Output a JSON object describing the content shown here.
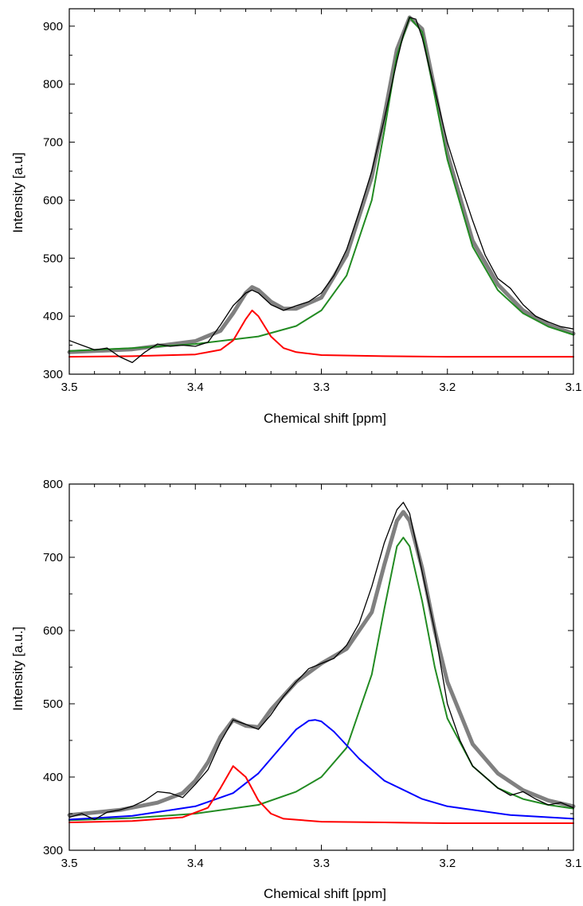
{
  "chart_data": [
    {
      "type": "line",
      "title": "",
      "xlabel": "Chemical shift [ppm]",
      "ylabel": "Intensity [a.u]",
      "xlim": [
        3.5,
        3.1
      ],
      "ylim": [
        300,
        930
      ],
      "x_reversed": true,
      "grid": false,
      "x_ticks": [
        "3.5",
        "3.4",
        "3.3",
        "3.2",
        "3.1"
      ],
      "y_ticks": [
        "300",
        "400",
        "500",
        "600",
        "700",
        "800",
        "900"
      ],
      "series": [
        {
          "color": "#000000",
          "style": "thin measured spectrum",
          "x": [
            3.5,
            3.49,
            3.48,
            3.47,
            3.46,
            3.45,
            3.44,
            3.43,
            3.42,
            3.41,
            3.4,
            3.39,
            3.38,
            3.37,
            3.36,
            3.355,
            3.35,
            3.34,
            3.33,
            3.32,
            3.31,
            3.3,
            3.29,
            3.28,
            3.27,
            3.26,
            3.25,
            3.24,
            3.235,
            3.23,
            3.225,
            3.22,
            3.21,
            3.2,
            3.19,
            3.18,
            3.17,
            3.16,
            3.15,
            3.14,
            3.13,
            3.12,
            3.11,
            3.1
          ],
          "y": [
            358,
            350,
            342,
            345,
            330,
            320,
            338,
            352,
            348,
            350,
            348,
            355,
            385,
            418,
            440,
            445,
            440,
            420,
            410,
            418,
            425,
            440,
            470,
            515,
            580,
            650,
            740,
            840,
            885,
            915,
            912,
            880,
            790,
            700,
            630,
            565,
            505,
            465,
            448,
            420,
            400,
            390,
            382,
            378
          ]
        },
        {
          "color": "#808080",
          "style": "thick total fit",
          "x": [
            3.5,
            3.45,
            3.4,
            3.38,
            3.37,
            3.36,
            3.355,
            3.35,
            3.34,
            3.33,
            3.32,
            3.3,
            3.28,
            3.26,
            3.25,
            3.24,
            3.23,
            3.22,
            3.21,
            3.2,
            3.18,
            3.16,
            3.14,
            3.12,
            3.1
          ],
          "y": [
            338,
            343,
            357,
            375,
            405,
            440,
            450,
            445,
            425,
            413,
            413,
            432,
            505,
            640,
            745,
            860,
            915,
            895,
            790,
            680,
            530,
            455,
            410,
            385,
            370
          ]
        },
        {
          "color": "#228B22",
          "style": "fit component",
          "x": [
            3.5,
            3.45,
            3.4,
            3.35,
            3.32,
            3.3,
            3.28,
            3.26,
            3.25,
            3.24,
            3.23,
            3.22,
            3.21,
            3.2,
            3.18,
            3.16,
            3.14,
            3.12,
            3.1
          ],
          "y": [
            340,
            345,
            352,
            365,
            383,
            410,
            470,
            600,
            720,
            850,
            915,
            890,
            780,
            670,
            520,
            445,
            405,
            382,
            368
          ]
        },
        {
          "color": "#FF0000",
          "style": "fit component",
          "x": [
            3.5,
            3.45,
            3.4,
            3.38,
            3.37,
            3.36,
            3.355,
            3.35,
            3.34,
            3.33,
            3.32,
            3.3,
            3.25,
            3.2,
            3.1
          ],
          "y": [
            330,
            331,
            334,
            342,
            358,
            395,
            410,
            400,
            365,
            345,
            338,
            333,
            331,
            330,
            330
          ]
        }
      ]
    },
    {
      "type": "line",
      "title": "",
      "xlabel": "Chemical shift [ppm]",
      "ylabel": "Intensity [a.u.]",
      "xlim": [
        3.5,
        3.1
      ],
      "ylim": [
        300,
        800
      ],
      "x_reversed": true,
      "grid": false,
      "x_ticks": [
        "3.5",
        "3.4",
        "3.3",
        "3.2",
        "3.1"
      ],
      "y_ticks": [
        "300",
        "400",
        "500",
        "600",
        "700",
        "800"
      ],
      "series": [
        {
          "color": "#000000",
          "style": "thin measured spectrum",
          "x": [
            3.5,
            3.49,
            3.48,
            3.47,
            3.46,
            3.45,
            3.44,
            3.43,
            3.42,
            3.41,
            3.4,
            3.39,
            3.38,
            3.37,
            3.36,
            3.35,
            3.34,
            3.33,
            3.32,
            3.31,
            3.3,
            3.29,
            3.28,
            3.27,
            3.26,
            3.25,
            3.24,
            3.235,
            3.23,
            3.22,
            3.21,
            3.2,
            3.19,
            3.18,
            3.17,
            3.16,
            3.15,
            3.14,
            3.13,
            3.12,
            3.11,
            3.1
          ],
          "y": [
            345,
            350,
            342,
            352,
            355,
            360,
            368,
            380,
            378,
            372,
            390,
            410,
            448,
            478,
            472,
            465,
            485,
            510,
            530,
            548,
            555,
            562,
            580,
            610,
            660,
            720,
            765,
            775,
            760,
            680,
            600,
            500,
            450,
            415,
            400,
            385,
            375,
            380,
            370,
            362,
            365,
            358
          ]
        },
        {
          "color": "#808080",
          "style": "thick total fit",
          "x": [
            3.5,
            3.46,
            3.43,
            3.41,
            3.4,
            3.39,
            3.38,
            3.37,
            3.36,
            3.35,
            3.34,
            3.32,
            3.3,
            3.28,
            3.26,
            3.25,
            3.24,
            3.235,
            3.23,
            3.22,
            3.21,
            3.2,
            3.18,
            3.16,
            3.14,
            3.12,
            3.1
          ],
          "y": [
            348,
            355,
            365,
            378,
            395,
            420,
            455,
            478,
            470,
            468,
            492,
            530,
            555,
            575,
            625,
            690,
            750,
            762,
            750,
            685,
            600,
            530,
            445,
            405,
            382,
            368,
            360
          ]
        },
        {
          "color": "#228B22",
          "style": "fit component",
          "x": [
            3.5,
            3.45,
            3.4,
            3.35,
            3.32,
            3.3,
            3.28,
            3.26,
            3.25,
            3.24,
            3.235,
            3.23,
            3.22,
            3.21,
            3.2,
            3.18,
            3.16,
            3.14,
            3.12,
            3.1
          ],
          "y": [
            341,
            344,
            350,
            362,
            380,
            400,
            440,
            540,
            630,
            715,
            727,
            715,
            640,
            550,
            480,
            415,
            385,
            370,
            362,
            357
          ]
        },
        {
          "color": "#0000FF",
          "style": "fit component",
          "x": [
            3.5,
            3.45,
            3.4,
            3.37,
            3.35,
            3.33,
            3.32,
            3.31,
            3.305,
            3.3,
            3.29,
            3.27,
            3.25,
            3.22,
            3.2,
            3.15,
            3.1
          ],
          "y": [
            342,
            347,
            360,
            378,
            405,
            445,
            465,
            477,
            478,
            476,
            462,
            425,
            395,
            370,
            360,
            348,
            343
          ]
        },
        {
          "color": "#FF0000",
          "style": "fit component",
          "x": [
            3.5,
            3.45,
            3.41,
            3.39,
            3.38,
            3.37,
            3.36,
            3.35,
            3.34,
            3.33,
            3.3,
            3.25,
            3.2,
            3.1
          ],
          "y": [
            338,
            340,
            345,
            358,
            385,
            415,
            400,
            368,
            350,
            343,
            339,
            338,
            337,
            337
          ]
        }
      ]
    }
  ]
}
